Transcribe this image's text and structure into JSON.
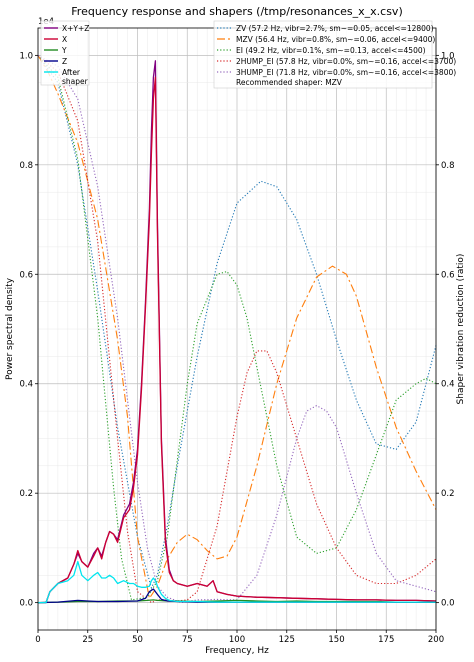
{
  "chart_data": {
    "type": "line",
    "title": "Frequency response and shapers (/tmp/resonances_x_x.csv)",
    "xlabel": "Frequency, Hz",
    "ylabel": "Power spectral density",
    "y2label": "Shaper vibration reduction (ratio)",
    "y_offset_label": "1e4",
    "xlim": [
      0,
      200
    ],
    "ylim": [
      -0.05,
      1.05
    ],
    "y2lim": [
      -0.05,
      1.05
    ],
    "xticks": [
      "0",
      "25",
      "50",
      "75",
      "100",
      "125",
      "150",
      "175",
      "200"
    ],
    "yticks": [
      "0.0",
      "0.2",
      "0.4",
      "0.6",
      "0.8",
      "1.0"
    ],
    "y2ticks": [
      "0.0",
      "0.2",
      "0.4",
      "0.6",
      "0.8",
      "1.0"
    ],
    "grid": true,
    "legend_psd": "top-left",
    "legend_shapers": "top-right",
    "recommended": "Recommended shaper: MZV",
    "psd_series": [
      {
        "name": "X+Y+Z",
        "color": "#800080",
        "x": [
          0,
          4,
          6,
          10,
          15,
          18,
          20,
          22,
          25,
          28,
          30,
          32,
          34,
          36,
          38,
          40,
          43,
          46,
          48,
          50,
          52,
          54,
          56,
          57,
          58,
          59,
          60,
          62,
          64,
          66,
          68,
          70,
          75,
          80,
          85,
          88,
          90,
          95,
          100,
          110,
          120,
          130,
          140,
          150,
          160,
          170,
          180,
          190,
          200
        ],
        "y": [
          0,
          0,
          0.02,
          0.035,
          0.045,
          0.07,
          0.09,
          0.075,
          0.065,
          0.09,
          0.1,
          0.085,
          0.11,
          0.13,
          0.125,
          0.115,
          0.16,
          0.18,
          0.22,
          0.28,
          0.4,
          0.55,
          0.72,
          0.86,
          0.96,
          0.99,
          0.7,
          0.3,
          0.12,
          0.06,
          0.04,
          0.035,
          0.03,
          0.035,
          0.03,
          0.04,
          0.02,
          0.015,
          0.012,
          0.01,
          0.009,
          0.008,
          0.007,
          0.006,
          0.005,
          0.005,
          0.004,
          0.004,
          0.003
        ]
      },
      {
        "name": "X",
        "color": "#cc0033",
        "x": [
          0,
          4,
          6,
          10,
          15,
          18,
          20,
          22,
          25,
          28,
          30,
          32,
          34,
          36,
          38,
          40,
          43,
          46,
          48,
          50,
          52,
          54,
          56,
          57,
          58,
          59,
          60,
          62,
          64,
          66,
          68,
          70,
          75,
          80,
          85,
          88,
          90,
          95,
          100,
          110,
          120,
          130,
          140,
          150,
          160,
          170,
          180,
          190,
          200
        ],
        "y": [
          0,
          0,
          0.02,
          0.035,
          0.045,
          0.07,
          0.095,
          0.075,
          0.065,
          0.085,
          0.1,
          0.08,
          0.11,
          0.13,
          0.125,
          0.11,
          0.155,
          0.17,
          0.21,
          0.27,
          0.39,
          0.54,
          0.7,
          0.82,
          0.92,
          0.96,
          0.68,
          0.29,
          0.11,
          0.055,
          0.04,
          0.035,
          0.03,
          0.035,
          0.03,
          0.04,
          0.02,
          0.015,
          0.012,
          0.01,
          0.009,
          0.008,
          0.007,
          0.006,
          0.005,
          0.005,
          0.004,
          0.004,
          0.003
        ]
      },
      {
        "name": "Y",
        "color": "#228b22",
        "x": [
          0,
          10,
          20,
          30,
          40,
          50,
          55,
          58,
          60,
          65,
          70,
          80,
          90,
          100,
          110,
          120,
          130,
          140,
          150,
          160,
          170,
          180,
          190,
          200
        ],
        "y": [
          0,
          0.001,
          0.002,
          0.002,
          0.003,
          0.003,
          0.004,
          0.005,
          0.004,
          0.003,
          0.003,
          0.002,
          0.003,
          0.004,
          0.003,
          0.002,
          0.003,
          0.002,
          0.002,
          0.002,
          0.002,
          0.001,
          0.001,
          0.001
        ]
      },
      {
        "name": "Z",
        "color": "#00008b",
        "x": [
          0,
          10,
          20,
          25,
          30,
          40,
          50,
          54,
          56,
          58,
          60,
          62,
          65,
          70,
          80,
          100,
          120,
          140,
          160,
          180,
          200
        ],
        "y": [
          0,
          0.001,
          0.004,
          0.003,
          0.002,
          0.002,
          0.003,
          0.008,
          0.02,
          0.025,
          0.015,
          0.006,
          0.003,
          0.002,
          0.001,
          0.001,
          0.001,
          0.001,
          0.001,
          0.001,
          0.001
        ]
      },
      {
        "name": "After\nshaper",
        "color": "#00e5ee",
        "x": [
          0,
          4,
          6,
          10,
          15,
          18,
          20,
          22,
          25,
          28,
          30,
          32,
          34,
          36,
          38,
          40,
          43,
          46,
          48,
          50,
          52,
          54,
          56,
          57,
          58,
          59,
          60,
          62,
          64,
          66,
          70,
          75,
          80,
          90,
          100,
          120,
          140,
          160,
          180,
          200
        ],
        "y": [
          0,
          0,
          0.02,
          0.035,
          0.04,
          0.05,
          0.075,
          0.05,
          0.04,
          0.05,
          0.055,
          0.045,
          0.045,
          0.05,
          0.045,
          0.035,
          0.04,
          0.035,
          0.035,
          0.03,
          0.028,
          0.028,
          0.03,
          0.04,
          0.045,
          0.04,
          0.03,
          0.015,
          0.008,
          0.004,
          0.002,
          0.002,
          0.002,
          0.001,
          0.001,
          0.001,
          0.001,
          0.001,
          0.001,
          0.001
        ]
      }
    ],
    "shaper_series": [
      {
        "name": "ZV (57.2 Hz, vibr=2.7%, sm~=0.05, accel<=12800)",
        "color": "#1f77b4",
        "dash": "dotted",
        "x": [
          0,
          10,
          20,
          30,
          40,
          50,
          57,
          60,
          65,
          70,
          80,
          90,
          100,
          112,
          120,
          130,
          140,
          150,
          160,
          170,
          180,
          190,
          200
        ],
        "y": [
          1.0,
          0.95,
          0.8,
          0.57,
          0.32,
          0.12,
          0.027,
          0.05,
          0.14,
          0.25,
          0.45,
          0.62,
          0.73,
          0.77,
          0.76,
          0.7,
          0.6,
          0.48,
          0.37,
          0.29,
          0.28,
          0.33,
          0.47
        ]
      },
      {
        "name": "MZV (56.4 Hz, vibr=0.8%, sm~=0.06, accel<=9400)",
        "color": "#ff7f0e",
        "dash": "dashdot",
        "x": [
          0,
          5,
          10,
          20,
          30,
          40,
          45,
          50,
          56,
          60,
          65,
          70,
          75,
          80,
          85,
          90,
          95,
          100,
          110,
          120,
          130,
          140,
          148,
          155,
          160,
          170,
          180,
          190,
          200
        ],
        "y": [
          1.0,
          0.97,
          0.93,
          0.84,
          0.7,
          0.48,
          0.34,
          0.12,
          0.008,
          0.03,
          0.08,
          0.11,
          0.125,
          0.115,
          0.095,
          0.08,
          0.085,
          0.12,
          0.25,
          0.4,
          0.52,
          0.595,
          0.615,
          0.6,
          0.56,
          0.43,
          0.32,
          0.24,
          0.17
        ]
      },
      {
        "name": "EI (49.2 Hz, vibr=0.1%, sm~=0.13, accel<=4500)",
        "color": "#2ca02c",
        "dash": "dotted",
        "x": [
          0,
          10,
          20,
          30,
          38,
          42,
          47,
          55,
          60,
          65,
          70,
          75,
          80,
          90,
          95,
          100,
          105,
          110,
          120,
          130,
          140,
          150,
          160,
          170,
          180,
          190,
          195,
          200
        ],
        "y": [
          1.0,
          0.96,
          0.81,
          0.52,
          0.21,
          0.08,
          0.005,
          0.01,
          0.04,
          0.12,
          0.26,
          0.4,
          0.51,
          0.6,
          0.605,
          0.58,
          0.52,
          0.43,
          0.25,
          0.12,
          0.09,
          0.1,
          0.17,
          0.27,
          0.37,
          0.4,
          0.41,
          0.4
        ]
      },
      {
        "name": "2HUMP_EI (57.8 Hz, vibr=0.0%, sm~=0.16, accel<=3700)",
        "color": "#d62728",
        "dash": "dotted",
        "x": [
          0,
          10,
          20,
          30,
          40,
          45,
          50,
          57,
          60,
          65,
          70,
          75,
          80,
          90,
          100,
          105,
          110,
          115,
          120,
          130,
          140,
          150,
          160,
          170,
          180,
          190,
          200
        ],
        "y": [
          1.0,
          0.97,
          0.88,
          0.66,
          0.3,
          0.13,
          0.02,
          0.0,
          0.005,
          0.005,
          0.003,
          0.005,
          0.02,
          0.14,
          0.34,
          0.42,
          0.46,
          0.46,
          0.42,
          0.3,
          0.18,
          0.1,
          0.05,
          0.035,
          0.035,
          0.05,
          0.08
        ]
      },
      {
        "name": "3HUMP_EI (71.8 Hz, vibr=0.0%, sm~=0.16, accel<=3800)",
        "color": "#9467bd",
        "dash": "dotted",
        "x": [
          0,
          10,
          20,
          30,
          40,
          50,
          55,
          60,
          65,
          72,
          80,
          90,
          100,
          110,
          120,
          130,
          135,
          140,
          145,
          150,
          160,
          170,
          180,
          190,
          200
        ],
        "y": [
          1.0,
          0.98,
          0.92,
          0.76,
          0.52,
          0.22,
          0.1,
          0.03,
          0.01,
          0.0,
          0.005,
          0.006,
          0.005,
          0.05,
          0.16,
          0.3,
          0.35,
          0.36,
          0.35,
          0.32,
          0.2,
          0.09,
          0.04,
          0.03,
          0.02
        ]
      }
    ]
  }
}
